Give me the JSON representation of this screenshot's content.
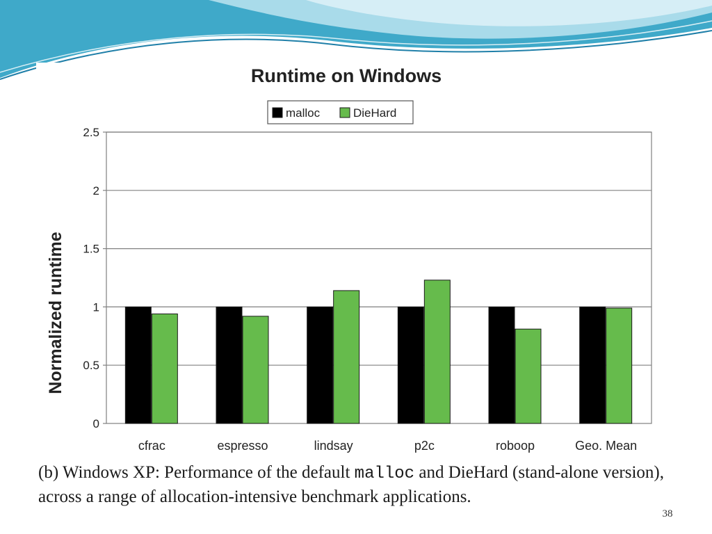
{
  "slide": {
    "page_number": "38",
    "colors": {
      "wave_dark": "#3fa9c9",
      "wave_light": "#a9dbea",
      "wave_line": "#1f7fa8"
    }
  },
  "caption": {
    "part1": "(b) Windows XP: Performance of the default ",
    "code": "malloc",
    "part2": " and DieHard (stand-alone version), across a range of allocation-intensive benchmark applications."
  },
  "chart_data": {
    "type": "bar",
    "title": "Runtime on Windows",
    "xlabel": "",
    "ylabel": "Normalized runtime",
    "ylim": [
      0,
      2.5
    ],
    "yticks": [
      0,
      0.5,
      1,
      1.5,
      2,
      2.5
    ],
    "ytick_labels": [
      "0",
      "0.5",
      "1",
      "1.5",
      "2",
      "2.5"
    ],
    "grid": true,
    "legend_position": "top-center",
    "categories": [
      "cfrac",
      "espresso",
      "lindsay",
      "p2c",
      "roboop",
      "Geo. Mean"
    ],
    "series": [
      {
        "name": "malloc",
        "color": "#000000",
        "values": [
          1.0,
          1.0,
          1.0,
          1.0,
          1.0,
          1.0
        ]
      },
      {
        "name": "DieHard",
        "color": "#66bb4c",
        "values": [
          0.94,
          0.92,
          1.14,
          1.23,
          0.81,
          0.99
        ]
      }
    ]
  }
}
